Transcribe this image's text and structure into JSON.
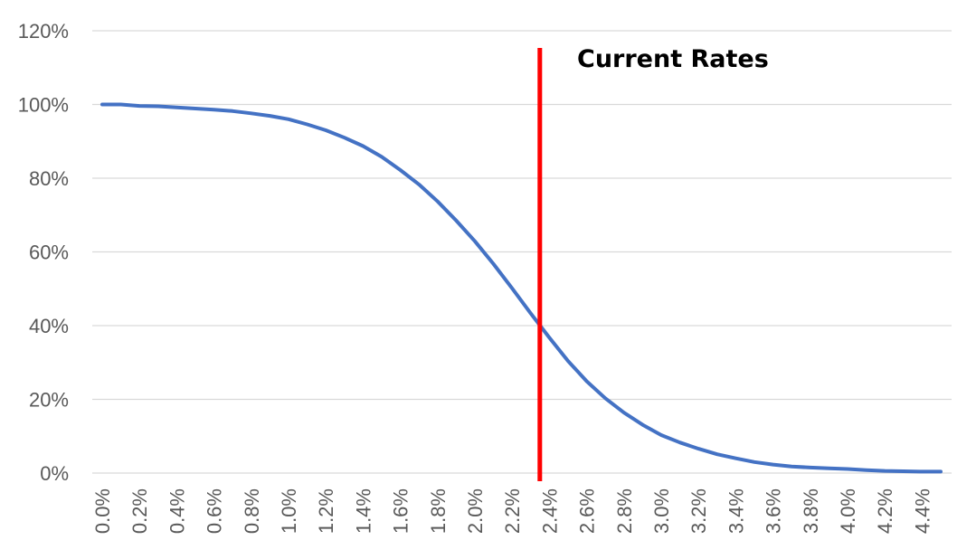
{
  "chart_data": {
    "type": "line",
    "title": "",
    "xlabel": "",
    "ylabel": "",
    "x": [
      "0.0%",
      "0.1%",
      "0.2%",
      "0.3%",
      "0.4%",
      "0.5%",
      "0.6%",
      "0.7%",
      "0.8%",
      "0.9%",
      "1.0%",
      "1.1%",
      "1.2%",
      "1.3%",
      "1.4%",
      "1.5%",
      "1.6%",
      "1.7%",
      "1.8%",
      "1.9%",
      "2.0%",
      "2.1%",
      "2.2%",
      "2.3%",
      "2.4%",
      "2.5%",
      "2.6%",
      "2.7%",
      "2.8%",
      "2.9%",
      "3.0%",
      "3.1%",
      "3.2%",
      "3.3%",
      "3.4%",
      "3.5%",
      "3.6%",
      "3.7%",
      "3.8%",
      "3.9%",
      "4.0%",
      "4.1%",
      "4.2%",
      "4.3%",
      "4.4%",
      "4.5%"
    ],
    "x_tick_labels": [
      "0.0%",
      "0.2%",
      "0.4%",
      "0.6%",
      "0.8%",
      "1.0%",
      "1.2%",
      "1.4%",
      "1.6%",
      "1.8%",
      "2.0%",
      "2.2%",
      "2.4%",
      "2.6%",
      "2.8%",
      "3.0%",
      "3.2%",
      "3.4%",
      "3.6%",
      "3.8%",
      "4.0%",
      "4.2%",
      "4.4%"
    ],
    "series": [
      {
        "values": [
          100,
          100,
          99.6,
          99.5,
          99.2,
          98.9,
          98.6,
          98.2,
          97.6,
          96.9,
          96,
          94.6,
          93,
          91,
          88.7,
          85.8,
          82.2,
          78.3,
          73.7,
          68.5,
          62.9,
          56.7,
          50.1,
          43.3,
          36.7,
          30.4,
          24.9,
          20.3,
          16.4,
          13.1,
          10.3,
          8.3,
          6.6,
          5.1,
          4,
          3,
          2.3,
          1.8,
          1.5,
          1.3,
          1.1,
          0.8,
          0.6,
          0.5,
          0.4,
          0.4
        ],
        "color": "#4472C4"
      }
    ],
    "ylim": [
      0,
      120
    ],
    "y_ticks": [
      "0%",
      "20%",
      "40%",
      "60%",
      "80%",
      "100%",
      "120%"
    ],
    "y_tick_values": [
      0,
      20,
      40,
      60,
      80,
      100,
      120
    ],
    "grid": true,
    "legend": "none",
    "reference_line": {
      "x": "2.3%",
      "color": "#FF0000"
    },
    "annotation": "Current Rates"
  }
}
